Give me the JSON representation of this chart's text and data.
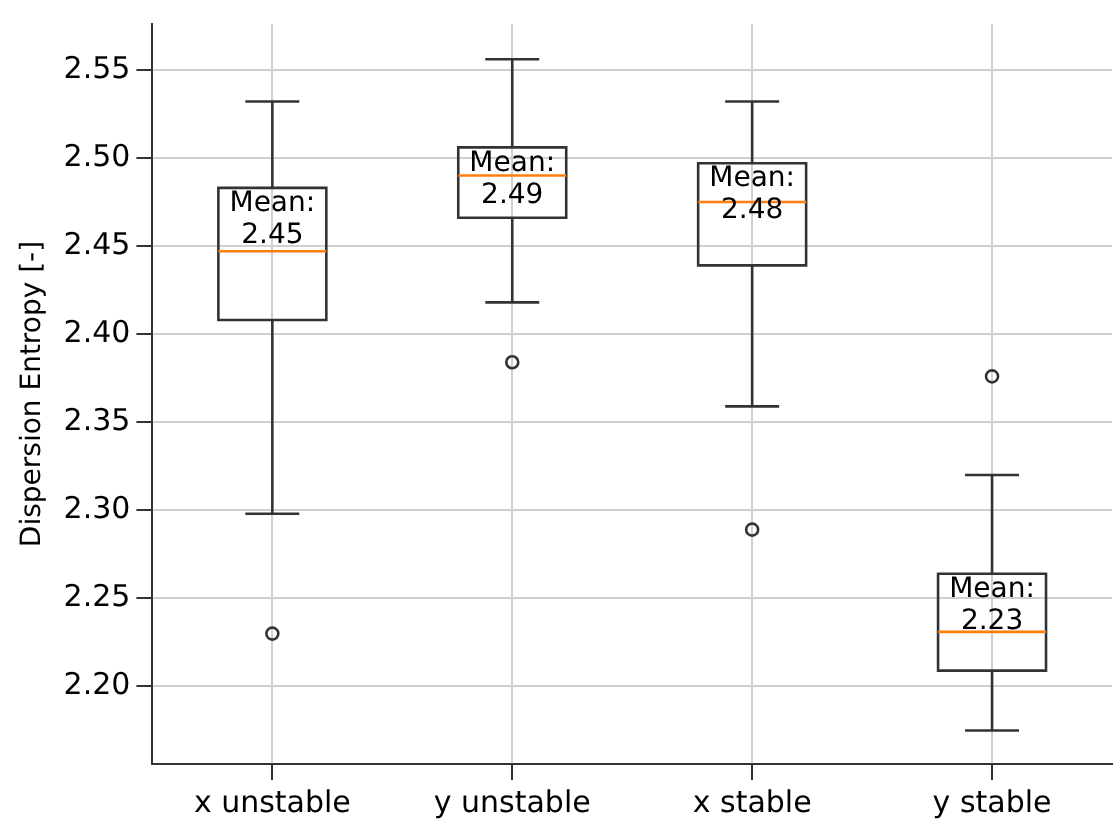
{
  "chart_data": {
    "type": "box",
    "ylabel": "Dispersion Entropy [-]",
    "categories": [
      "x unstable",
      "y unstable",
      "x stable",
      "y stable"
    ],
    "series": [
      {
        "color": "#333333",
        "boxes": [
          {
            "low": 2.298,
            "q1": 2.408,
            "median": 2.447,
            "q3": 2.483,
            "high": 2.532,
            "outliers": [
              2.23
            ]
          },
          {
            "low": 2.418,
            "q1": 2.466,
            "median": 2.49,
            "q3": 2.506,
            "high": 2.556,
            "outliers": [
              2.384
            ]
          },
          {
            "low": 2.359,
            "q1": 2.439,
            "median": 2.475,
            "q3": 2.497,
            "high": 2.532,
            "outliers": [
              2.289
            ]
          },
          {
            "low": 2.175,
            "q1": 2.209,
            "median": 2.231,
            "q3": 2.264,
            "high": 2.32,
            "outliers": [
              2.376
            ]
          }
        ]
      }
    ],
    "ylim": [
      2.156,
      2.576
    ],
    "yticks": [
      {
        "value": 2.2,
        "label": "2.20"
      },
      2.25,
      {
        "value": 2.3,
        "label": "2.30"
      },
      2.35,
      {
        "value": 2.4,
        "label": "2.40"
      },
      2.45,
      {
        "value": 2.5,
        "label": "2.50"
      },
      2.55
    ],
    "grid": true,
    "annotations": [
      "Mean:\n2.45",
      "Mean:\n2.49",
      "Mean:\n2.48",
      "Mean:\n2.23"
    ]
  }
}
